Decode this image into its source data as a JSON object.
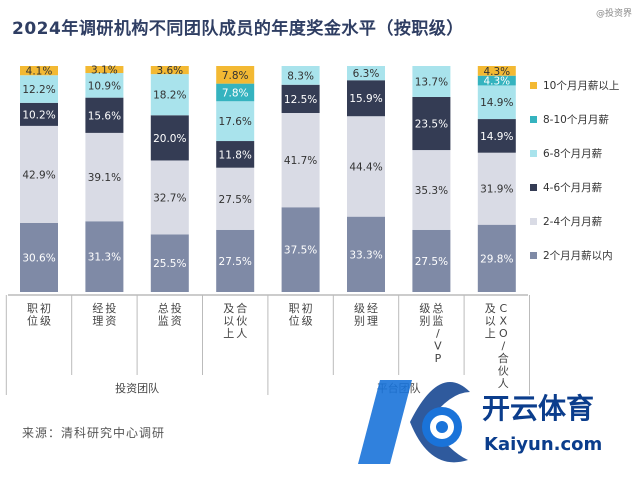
{
  "page": {
    "watermark_top": "@投资界",
    "source": "来源：清科研究中心调研",
    "logo": {
      "brand": "开云体育",
      "site": "Kaiyun.com",
      "colors": [
        "#1a73d9",
        "#0b3d8c"
      ]
    }
  },
  "chart_data": {
    "type": "bar",
    "stacked": true,
    "percent": true,
    "title": "2024年调研机构不同团队成员的年度奖金水平（按职级）",
    "ylim": [
      0,
      100
    ],
    "grid": false,
    "legend_position": "right",
    "categories": [
      "职初位级",
      "经投理资",
      "总投监资",
      "及合以伙上人",
      "职初位级",
      "级经别理",
      "总监级/VP别",
      "CXO/合伙人及以上"
    ],
    "category_lines": [
      [
        "职",
        "位",
        "初",
        "级"
      ],
      [
        "经",
        "理",
        "投",
        "资"
      ],
      [
        "总",
        "监",
        "投",
        "资"
      ],
      [
        "及",
        "以",
        "上",
        "合",
        "伙",
        "人"
      ],
      [
        "职",
        "位",
        "初",
        "级"
      ],
      [
        "级",
        "别",
        "经",
        "理"
      ],
      [
        "级",
        "别",
        "总",
        "监",
        "/",
        "V",
        "P"
      ],
      [
        "及",
        "以",
        "上",
        "C",
        "X",
        "O",
        "/",
        "合",
        "伙",
        "人"
      ]
    ],
    "groups": [
      {
        "label": "投资团队",
        "start": 0,
        "end": 3
      },
      {
        "label": "平台团队",
        "start": 4,
        "end": 7
      }
    ],
    "series": [
      {
        "name": "2个月月薪以内",
        "color": "#7f8aa6",
        "values": [
          30.6,
          31.3,
          25.5,
          27.5,
          37.5,
          33.3,
          27.5,
          29.8
        ]
      },
      {
        "name": "2-4个月月薪",
        "color": "#d9dbe5",
        "values": [
          42.9,
          39.1,
          32.7,
          27.5,
          41.7,
          44.4,
          35.3,
          31.9
        ]
      },
      {
        "name": "4-6个月月薪",
        "color": "#343c54",
        "values": [
          10.2,
          15.6,
          20.0,
          11.8,
          12.5,
          15.9,
          23.5,
          14.9
        ]
      },
      {
        "name": "6-8个月月薪",
        "color": "#a9e3ec",
        "values": [
          12.2,
          10.9,
          18.2,
          17.6,
          8.3,
          6.3,
          13.7,
          14.9
        ]
      },
      {
        "name": "8-10个月月薪",
        "color": "#35b3bf",
        "values": [
          null,
          null,
          null,
          7.8,
          null,
          null,
          null,
          4.3
        ]
      },
      {
        "name": "10个月月薪以上",
        "color": "#f3b933",
        "values": [
          4.1,
          3.1,
          3.6,
          7.8,
          null,
          null,
          null,
          4.3
        ]
      }
    ],
    "labels": [
      [
        "30.6%",
        "31.3%",
        "25.5%",
        "27.5%",
        "37.5%",
        "33.3%",
        "27.5%",
        "29.8%"
      ],
      [
        "42.9%",
        "39.1%",
        "32.7%",
        "27.5%",
        "41.7%",
        "44.4%",
        "35.3%",
        "31.9%"
      ],
      [
        "10.2%",
        "15.6%",
        "20.0%",
        "11.8%",
        "12.5%",
        "15.9%",
        "23.5%",
        "14.9%"
      ],
      [
        "12.2%",
        "10.9%",
        "18.2%",
        "17.6%",
        "8.3%",
        "6.3%",
        "13.7%",
        "14.9%"
      ],
      [
        "",
        "",
        "",
        "7.8%",
        "",
        "",
        "",
        "4.3%"
      ],
      [
        "4.1%",
        "3.1%",
        "3.6%",
        "7.8%",
        "",
        "",
        "",
        "4.3%"
      ]
    ]
  }
}
